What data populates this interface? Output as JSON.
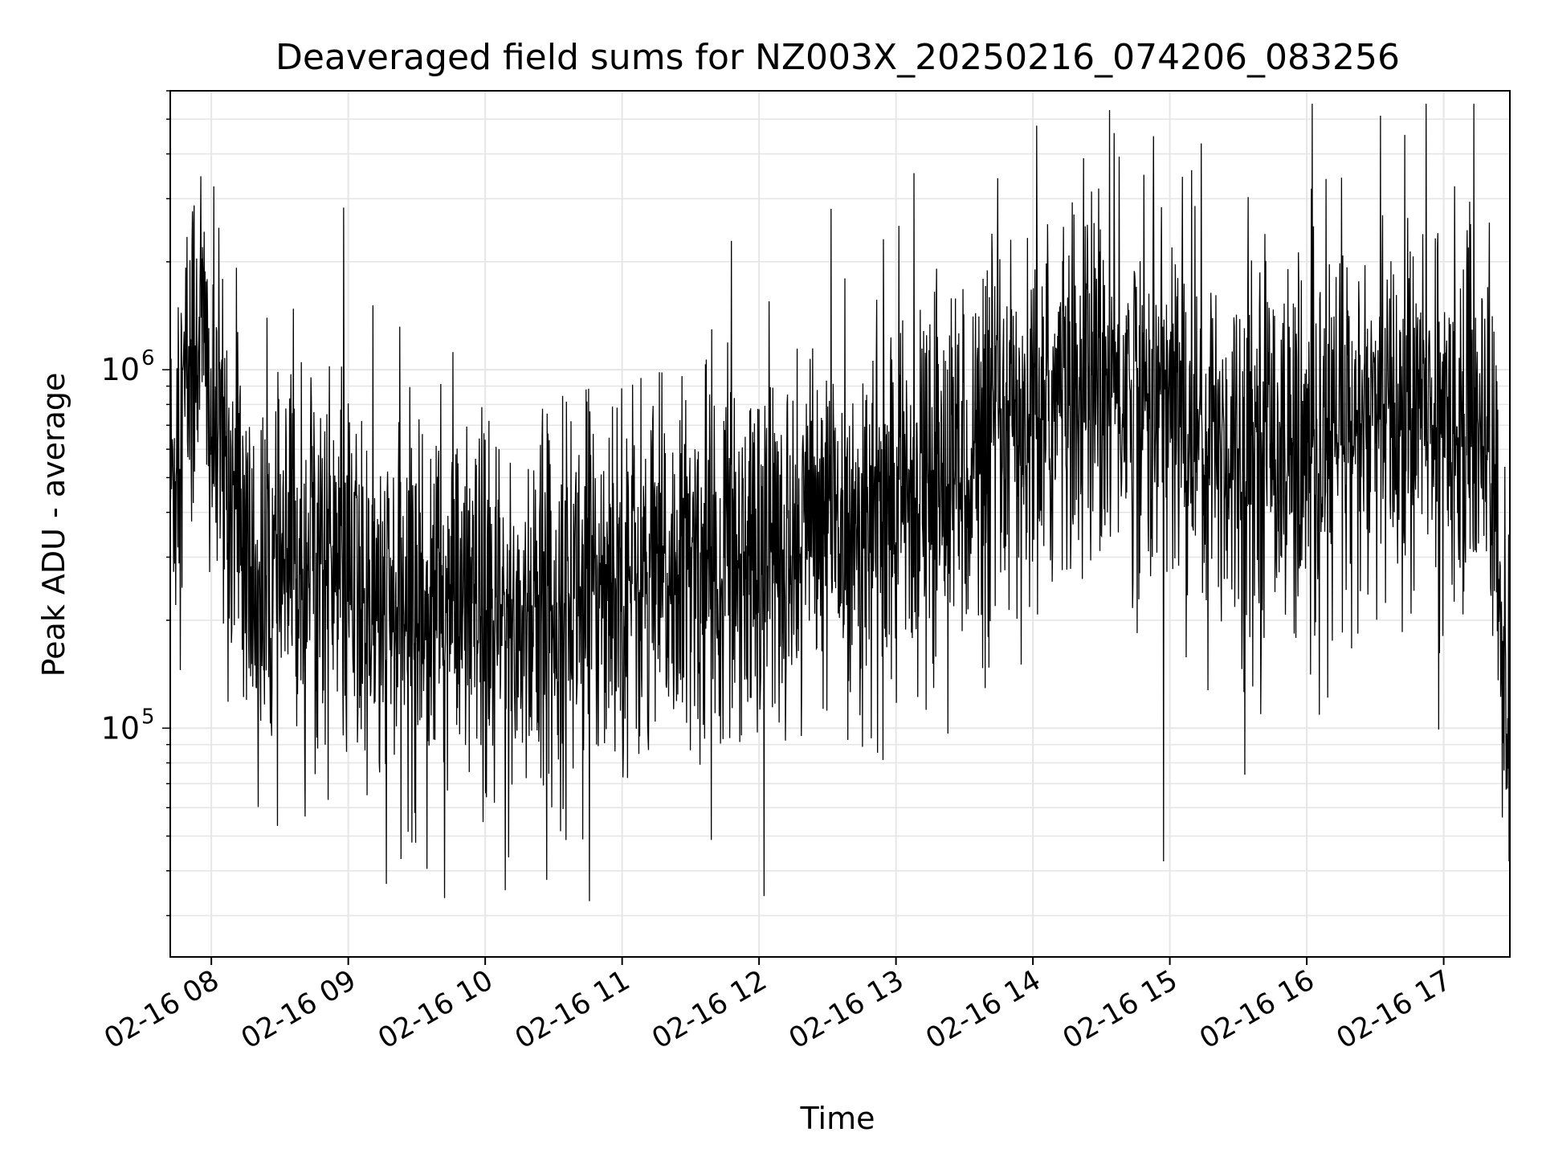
{
  "chart_data": {
    "type": "line",
    "title": "Deaveraged field sums for NZ003X_20250216_074206_083256",
    "xlabel": "Time",
    "ylabel": "Peak ADU - average",
    "yscale": "log",
    "xlim": [
      "2025-02-16 07:42",
      "2025-02-16 17:29"
    ],
    "ylim": [
      23000,
      6000000
    ],
    "grid": true,
    "line_color": "#000000",
    "x_ticks": [
      {
        "time": "2025-02-16 08:00",
        "label": "02-16 08"
      },
      {
        "time": "2025-02-16 09:00",
        "label": "02-16 09"
      },
      {
        "time": "2025-02-16 10:00",
        "label": "02-16 10"
      },
      {
        "time": "2025-02-16 11:00",
        "label": "02-16 11"
      },
      {
        "time": "2025-02-16 12:00",
        "label": "02-16 12"
      },
      {
        "time": "2025-02-16 13:00",
        "label": "02-16 13"
      },
      {
        "time": "2025-02-16 14:00",
        "label": "02-16 14"
      },
      {
        "time": "2025-02-16 15:00",
        "label": "02-16 15"
      },
      {
        "time": "2025-02-16 16:00",
        "label": "02-16 16"
      },
      {
        "time": "2025-02-16 17:00",
        "label": "02-16 17"
      }
    ],
    "y_ticks": [
      {
        "value": 100000,
        "base": "10",
        "exp": "5"
      },
      {
        "value": 1000000,
        "base": "10",
        "exp": "6"
      }
    ],
    "series": [
      {
        "x": [
          "2025-02-16 07:42",
          "2025-02-16 07:50",
          "2025-02-16 07:55",
          "2025-02-16 08:00",
          "2025-02-16 08:10",
          "2025-02-16 08:20",
          "2025-02-16 08:30",
          "2025-02-16 08:45",
          "2025-02-16 09:00",
          "2025-02-16 09:15",
          "2025-02-16 09:30",
          "2025-02-16 09:45",
          "2025-02-16 10:00",
          "2025-02-16 10:15",
          "2025-02-16 10:30",
          "2025-02-16 10:45",
          "2025-02-16 11:00",
          "2025-02-16 11:15",
          "2025-02-16 11:30",
          "2025-02-16 11:45",
          "2025-02-16 12:00",
          "2025-02-16 12:15",
          "2025-02-16 12:30",
          "2025-02-16 12:45",
          "2025-02-16 13:00",
          "2025-02-16 13:15",
          "2025-02-16 13:30",
          "2025-02-16 13:45",
          "2025-02-16 14:00",
          "2025-02-16 14:15",
          "2025-02-16 14:30",
          "2025-02-16 14:45",
          "2025-02-16 15:00",
          "2025-02-16 15:15",
          "2025-02-16 15:30",
          "2025-02-16 15:45",
          "2025-02-16 16:00",
          "2025-02-16 16:15",
          "2025-02-16 16:30",
          "2025-02-16 16:45",
          "2025-02-16 17:00",
          "2025-02-16 17:10",
          "2025-02-16 17:20",
          "2025-02-16 17:25",
          "2025-02-16 17:29"
        ],
        "y": [
          450000,
          1000000,
          1500000,
          700000,
          450000,
          220000,
          250000,
          350000,
          250000,
          200000,
          220000,
          230000,
          190000,
          200000,
          220000,
          260000,
          280000,
          250000,
          270000,
          310000,
          320000,
          340000,
          380000,
          380000,
          420000,
          500000,
          560000,
          620000,
          720000,
          850000,
          900000,
          850000,
          800000,
          650000,
          600000,
          700000,
          550000,
          640000,
          700000,
          750000,
          760000,
          800000,
          700000,
          200000,
          90000
        ]
      }
    ]
  }
}
